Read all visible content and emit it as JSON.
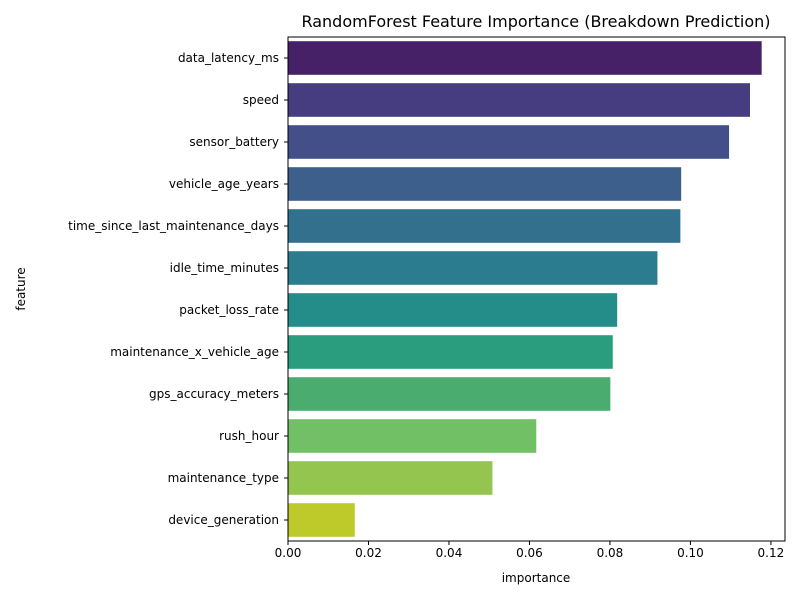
{
  "chart_data": {
    "type": "bar",
    "orientation": "horizontal",
    "title": "RandomForest Feature Importance (Breakdown Prediction)",
    "xlabel": "importance",
    "ylabel": "feature",
    "xlim": [
      0,
      0.1235
    ],
    "xticks": [
      0.0,
      0.02,
      0.04,
      0.06,
      0.08,
      0.1,
      0.12
    ],
    "xtick_labels": [
      "0.00",
      "0.02",
      "0.04",
      "0.06",
      "0.08",
      "0.10",
      "0.12"
    ],
    "grid": false,
    "categories": [
      "data_latency_ms",
      "speed",
      "sensor_battery",
      "vehicle_age_years",
      "time_since_last_maintenance_days",
      "idle_time_minutes",
      "packet_loss_rate",
      "maintenance_x_vehicle_age",
      "gps_accuracy_meters",
      "rush_hour",
      "maintenance_type",
      "device_generation"
    ],
    "values": [
      0.1177,
      0.1148,
      0.1096,
      0.0977,
      0.0975,
      0.0918,
      0.0818,
      0.0807,
      0.0801,
      0.0617,
      0.0508,
      0.0166
    ],
    "colors": [
      "#472168",
      "#463d80",
      "#424f89",
      "#3d5f8c",
      "#33708e",
      "#2a7c8e",
      "#248c89",
      "#2a9d7e",
      "#4aad6f",
      "#71c065",
      "#93c54f",
      "#bec92a"
    ]
  }
}
